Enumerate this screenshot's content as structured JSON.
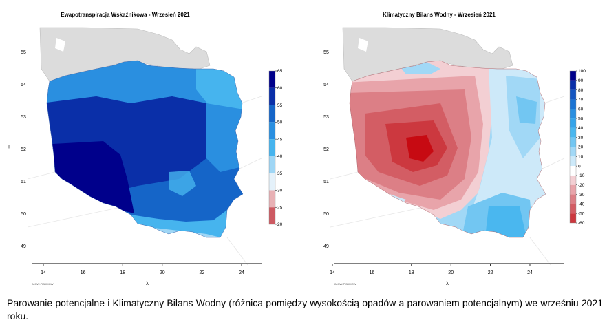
{
  "maps": [
    {
      "title": "Ewapotranspiracja Wskaźnikowa - Wrzesień 2021",
      "x_ticks": [
        "14",
        "16",
        "18",
        "20",
        "22",
        "24"
      ],
      "y_ticks": [
        "55",
        "54",
        "53",
        "52",
        "51",
        "50",
        "49"
      ],
      "x_axis_label": "λ",
      "y_axis_label": "φ",
      "credit": "IMGW-PIB IMGW",
      "legend": {
        "ticks": [
          "65",
          "60",
          "55",
          "50",
          "45",
          "40",
          "35",
          "30",
          "25",
          "20"
        ],
        "colors": [
          "#00008b",
          "#0a2fa8",
          "#1565c8",
          "#2a8fe0",
          "#46b4ee",
          "#9fd6f5",
          "#e4f1fa",
          "#e8b1b5",
          "#cc5a62",
          "#c70a12"
        ]
      }
    },
    {
      "title": "Klimatyczny Bilans Wodny - Wrzesień 2021",
      "x_ticks": [
        "14",
        "16",
        "18",
        "20",
        "22",
        "24"
      ],
      "y_ticks": [
        "55",
        "54",
        "53",
        "52",
        "51",
        "50",
        "49"
      ],
      "x_axis_label": "λ",
      "y_axis_label": "φ",
      "credit": "IMGW-PIB IMGW",
      "legend": {
        "ticks": [
          "100",
          "90",
          "80",
          "70",
          "60",
          "50",
          "40",
          "30",
          "20",
          "10",
          "0",
          "-10",
          "-20",
          "-30",
          "-40",
          "-50",
          "-60"
        ],
        "colors": [
          "#00008b",
          "#0a2fa8",
          "#1556c0",
          "#1b74d3",
          "#2a8fe0",
          "#35a4ea",
          "#4ab7ef",
          "#72c6f2",
          "#a1d8f6",
          "#cde9f9",
          "#ffffff",
          "#f3cfd3",
          "#e8a4aa",
          "#dc7f86",
          "#d35d64",
          "#cc383f",
          "#c70a12"
        ]
      }
    }
  ],
  "caption": "Parowanie potencjalne i Klimatyczny Bilans Wodny (różnica pomiędzy wysokością opadów a parowaniem potencjalnym) we wrześniu 2021 roku."
}
